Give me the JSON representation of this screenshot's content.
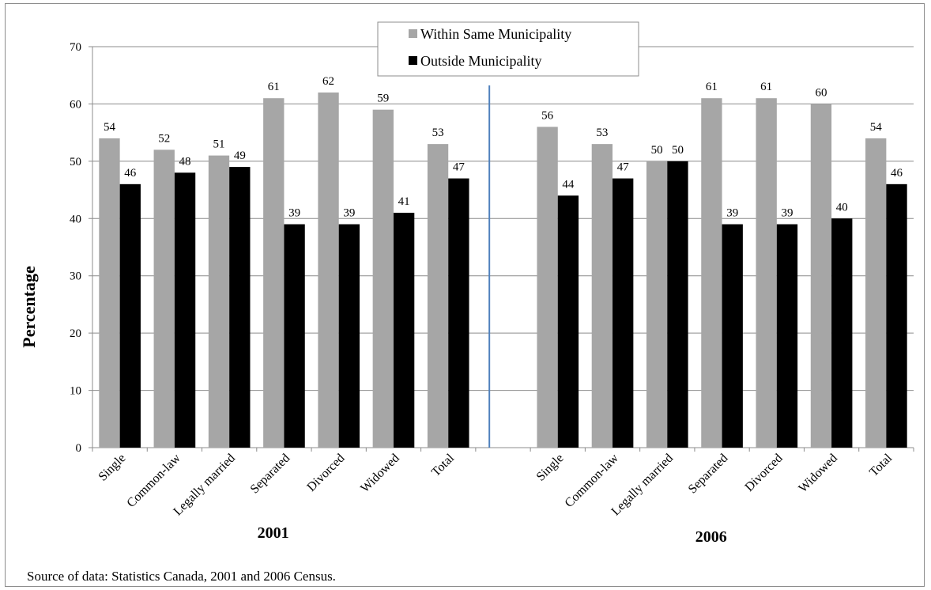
{
  "chart_data": {
    "type": "bar",
    "ylabel": "Percentage",
    "ylim": [
      0,
      70
    ],
    "yticks": [
      "0",
      "10",
      "20",
      "30",
      "40",
      "50",
      "60",
      "70"
    ],
    "grid": true,
    "legend_position": "top-center",
    "groups": [
      {
        "label": "2001",
        "categories": [
          "Single",
          "Common-law",
          "Legally married",
          "Separated",
          "Divorced",
          "Widowed",
          "Total"
        ],
        "series": [
          {
            "name": "Within Same Municipality",
            "values": [
              54,
              52,
              51,
              61,
              62,
              59,
              53
            ]
          },
          {
            "name": "Outside Municipality",
            "values": [
              46,
              48,
              49,
              39,
              39,
              41,
              47
            ]
          }
        ]
      },
      {
        "label": "2006",
        "categories": [
          "Single",
          "Common-law",
          "Legally married",
          "Separated",
          "Divorced",
          "Widowed",
          "Total"
        ],
        "series": [
          {
            "name": "Within Same Municipality",
            "values": [
              56,
              53,
              50,
              61,
              61,
              60,
              54
            ]
          },
          {
            "name": "Outside Municipality",
            "values": [
              44,
              47,
              50,
              39,
              39,
              40,
              46
            ]
          }
        ]
      }
    ],
    "legend": [
      "Within Same Municipality",
      "Outside Municipality"
    ],
    "source_note": "Source of data:  Statistics Canada, 2001 and 2006 Census."
  },
  "colors": {
    "series_within": "#a6a6a6",
    "series_outside": "#000000",
    "gridline": "#8c8c8c",
    "divider": "#4f81bd"
  }
}
